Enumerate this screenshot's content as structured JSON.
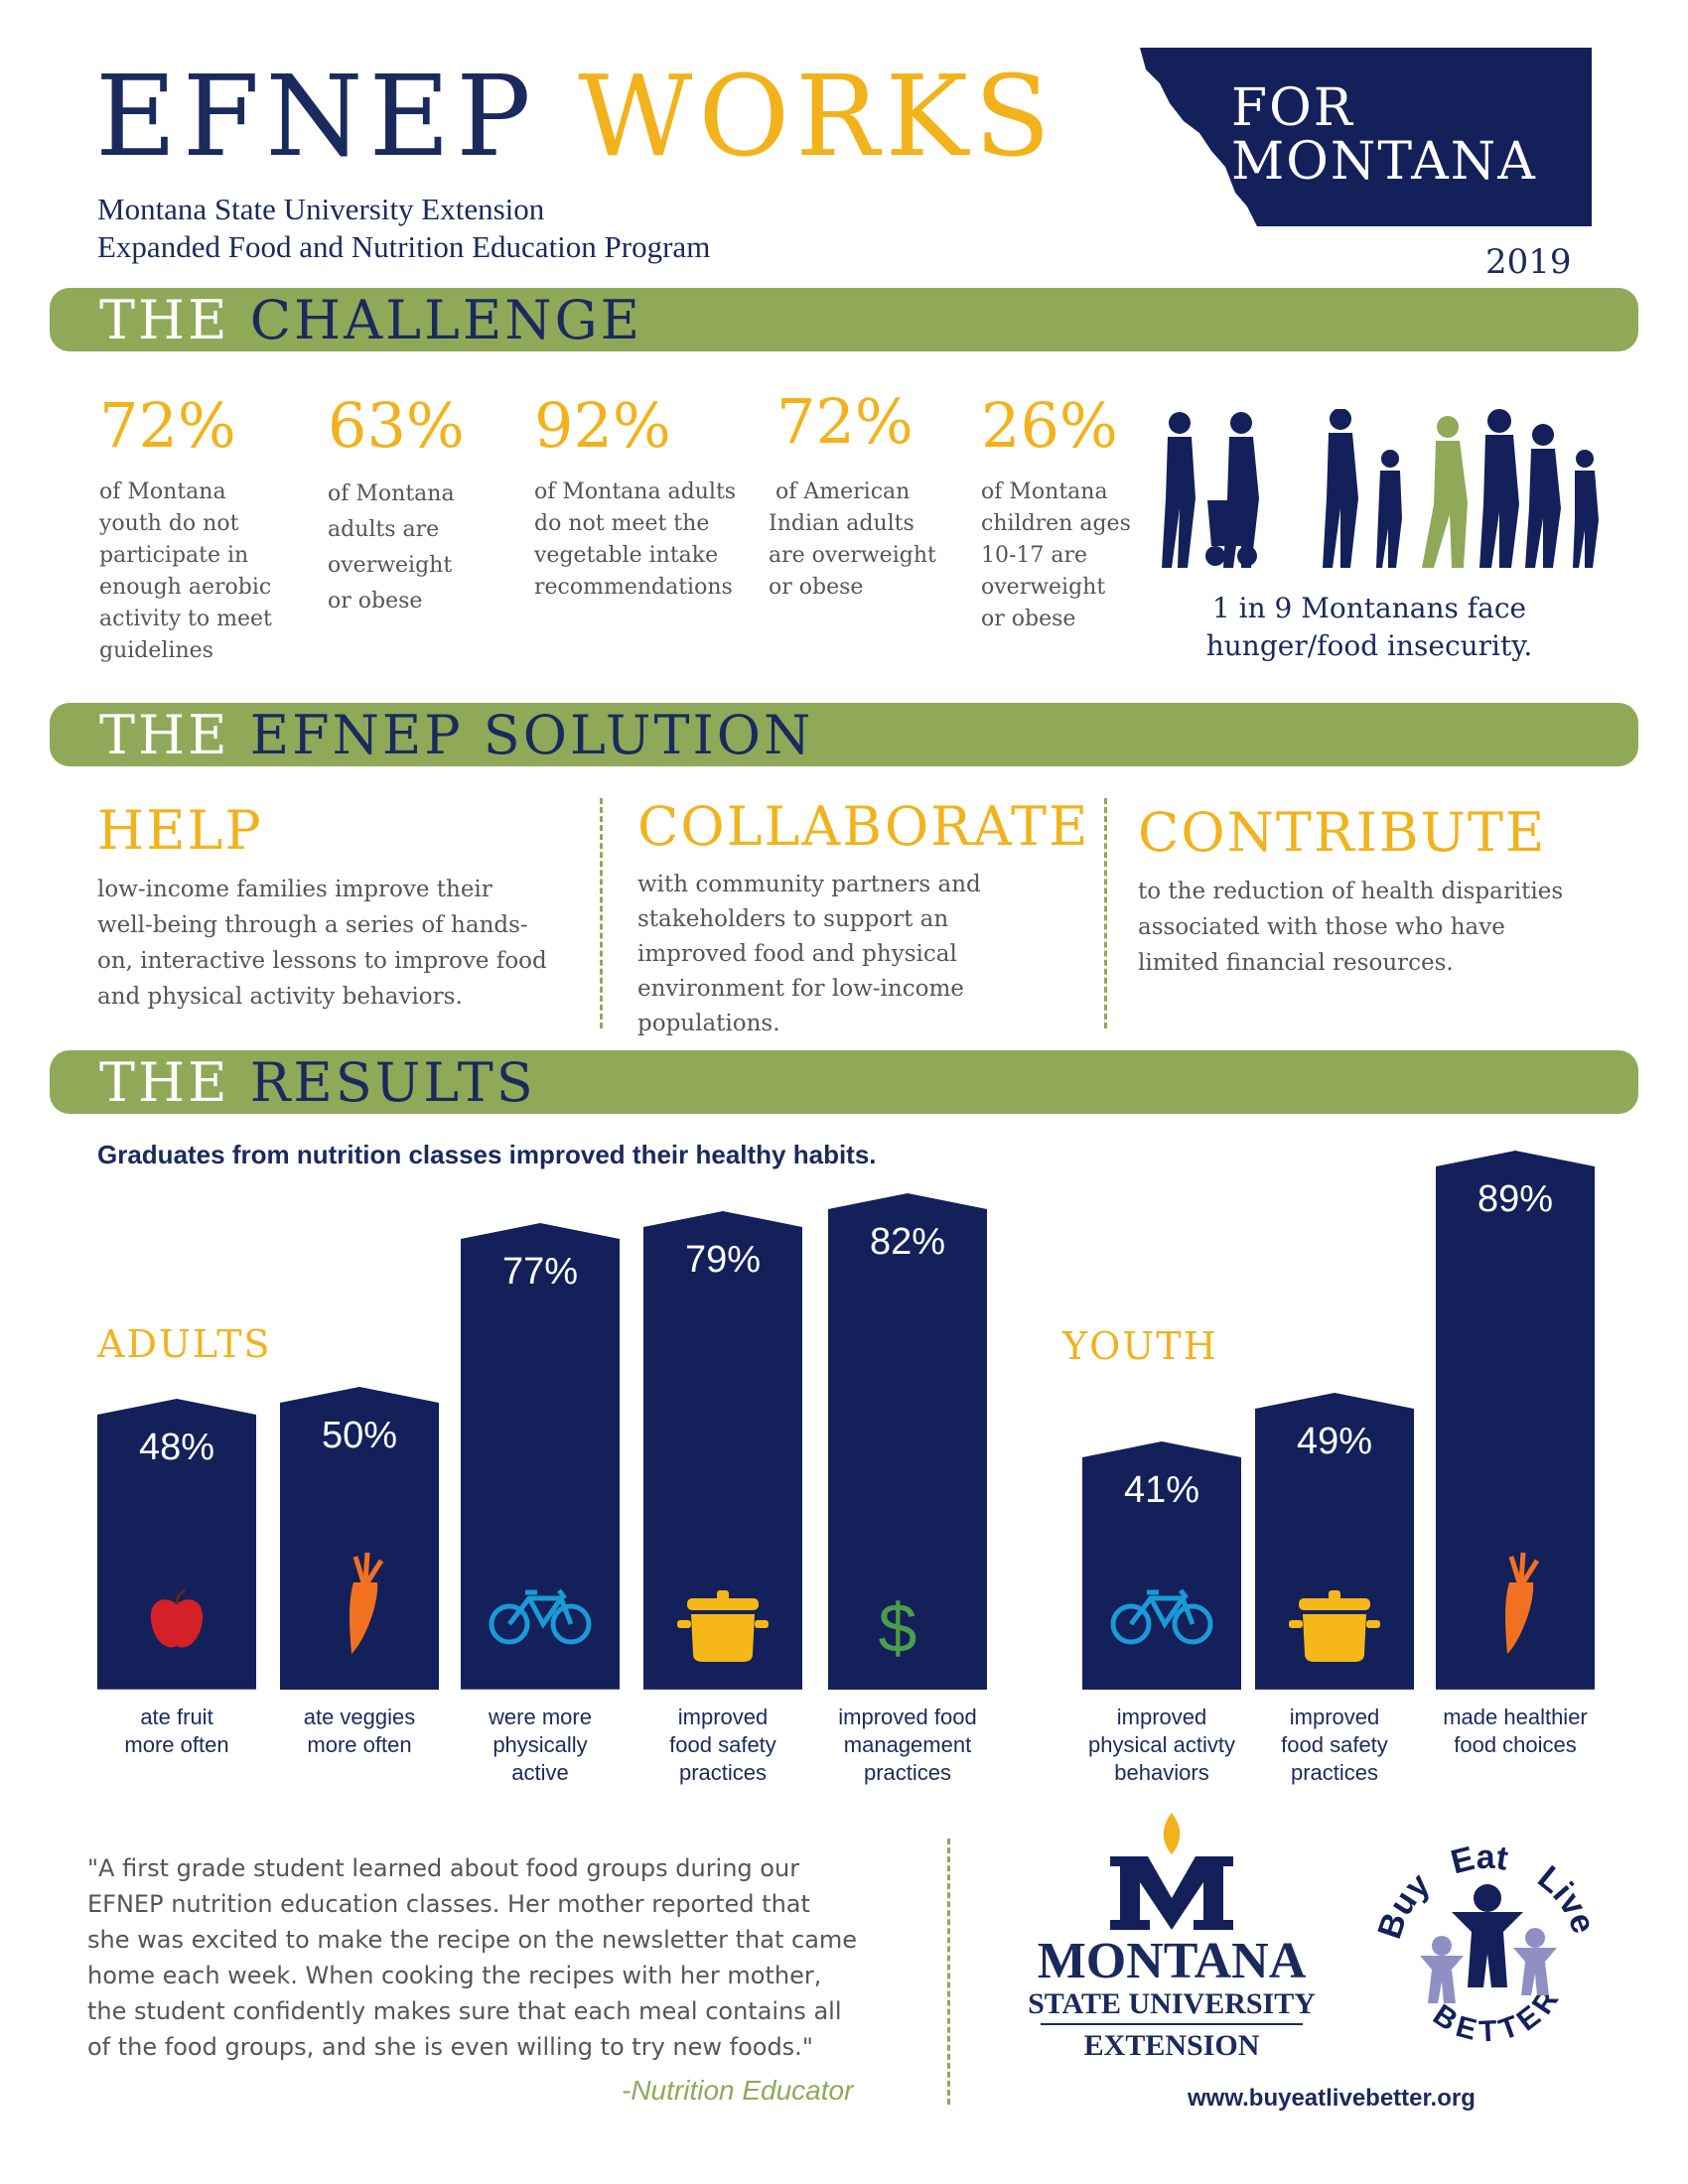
{
  "header": {
    "title_part1": "EFNEP",
    "title_part2": "WORKS",
    "subtitle_line1": "Montana State University Extension",
    "subtitle_line2": "Expanded Food and Nutrition Education Program",
    "region_line1": "FOR",
    "region_line2": "MONTANA",
    "year": "2019"
  },
  "challenge": {
    "banner_part1": "THE",
    "banner_part2": "CHALLENGE",
    "stats": [
      {
        "value": "72%",
        "text": [
          "of Montana",
          "youth do not",
          "participate in",
          "enough aerobic",
          "activity to meet",
          "guidelines"
        ]
      },
      {
        "value": "63%",
        "text": [
          "of Montana",
          "adults are",
          "overweight",
          "or obese"
        ]
      },
      {
        "value": "92%",
        "text": [
          "of Montana adults",
          "do not meet the",
          "vegetable intake",
          "recommendations"
        ]
      },
      {
        "value": "72%",
        "text": [
          " of American",
          "Indian adults",
          "are overweight",
          "or obese"
        ]
      },
      {
        "value": "26%",
        "text": [
          "of Montana",
          "children ages",
          "10-17 are",
          "overweight",
          "or obese"
        ]
      }
    ],
    "hunger_line1": "1 in 9 Montanans face",
    "hunger_line2": "hunger/food insecurity."
  },
  "solution": {
    "banner_part1": "THE",
    "banner_part2": "EFNEP SOLUTION",
    "columns": [
      {
        "heading": "HELP",
        "text": [
          "low-income families improve their",
          "well-being through a series of hands-",
          "on, interactive lessons to improve food",
          "and physical activity behaviors."
        ]
      },
      {
        "heading": "COLLABORATE",
        "text": [
          "with community partners and",
          "stakeholders to support an",
          "improved food and physical",
          "environment for low-income",
          "populations."
        ]
      },
      {
        "heading": "CONTRIBUTE",
        "text": [
          "to the reduction of health disparities",
          "associated with those who have",
          "limited financial resources."
        ]
      }
    ]
  },
  "results": {
    "banner_part1": "THE",
    "banner_part2": "RESULTS",
    "subtitle": "Graduates from nutrition classes improved their healthy habits.",
    "adults_label": "ADULTS",
    "youth_label": "YOUTH",
    "colors": {
      "bar": "#13205a",
      "apple": "#d42027",
      "carrot": "#f27121",
      "bike": "#1a9ad7",
      "pot": "#f6b819",
      "dollar": "#4a9e4a"
    }
  },
  "chart_data": {
    "type": "bar",
    "title": "Graduates from nutrition classes improved their healthy habits.",
    "ylim": [
      0,
      100
    ],
    "series": [
      {
        "name": "ADULTS",
        "categories": [
          "ate fruit more often",
          "ate veggies more often",
          "were more physically active",
          "improved food safety practices",
          "improved food management practices"
        ],
        "values": [
          48,
          50,
          77,
          79,
          82
        ],
        "labels": [
          "48%",
          "50%",
          "77%",
          "79%",
          "82%"
        ],
        "caption_lines": [
          [
            "ate fruit",
            "more often"
          ],
          [
            "ate veggies",
            "more often"
          ],
          [
            "were more",
            "physically",
            "active"
          ],
          [
            "improved",
            "food safety",
            "practices"
          ],
          [
            "improved food",
            "management",
            "practices"
          ]
        ],
        "icons": [
          "apple-icon",
          "carrot-icon",
          "bicycle-icon",
          "cooking-pot-icon",
          "dollar-sign-icon"
        ]
      },
      {
        "name": "YOUTH",
        "categories": [
          "improved physical activty behaviors",
          "improved food safety practices",
          "made healthier food choices"
        ],
        "values": [
          41,
          49,
          89
        ],
        "labels": [
          "41%",
          "49%",
          "89%"
        ],
        "caption_lines": [
          [
            "improved",
            "physical activty",
            "behaviors"
          ],
          [
            "improved",
            "food safety",
            "practices"
          ],
          [
            "made healthier",
            "food choices"
          ]
        ],
        "icons": [
          "bicycle-icon",
          "cooking-pot-icon",
          "carrot-icon"
        ]
      }
    ]
  },
  "testimonial": {
    "lines": [
      "\"A first grade student learned about food groups during our",
      "EFNEP nutrition education classes. Her mother reported that",
      "she was excited to make the recipe on the newsletter that came",
      "home each week. When cooking the recipes with her mother,",
      "the student confidently makes sure that each meal contains all",
      "of the food groups, and she is even willing to try new foods.\""
    ],
    "attribution": "-Nutrition Educator"
  },
  "logos": {
    "msu_name": "MONTANA",
    "msu_university": "STATE UNIVERSITY",
    "msu_extension": "EXTENSION",
    "bel_words": [
      "Buy",
      "Eat",
      "Live",
      "BETTER"
    ],
    "website": "www.buyeatlivebetter.org"
  }
}
